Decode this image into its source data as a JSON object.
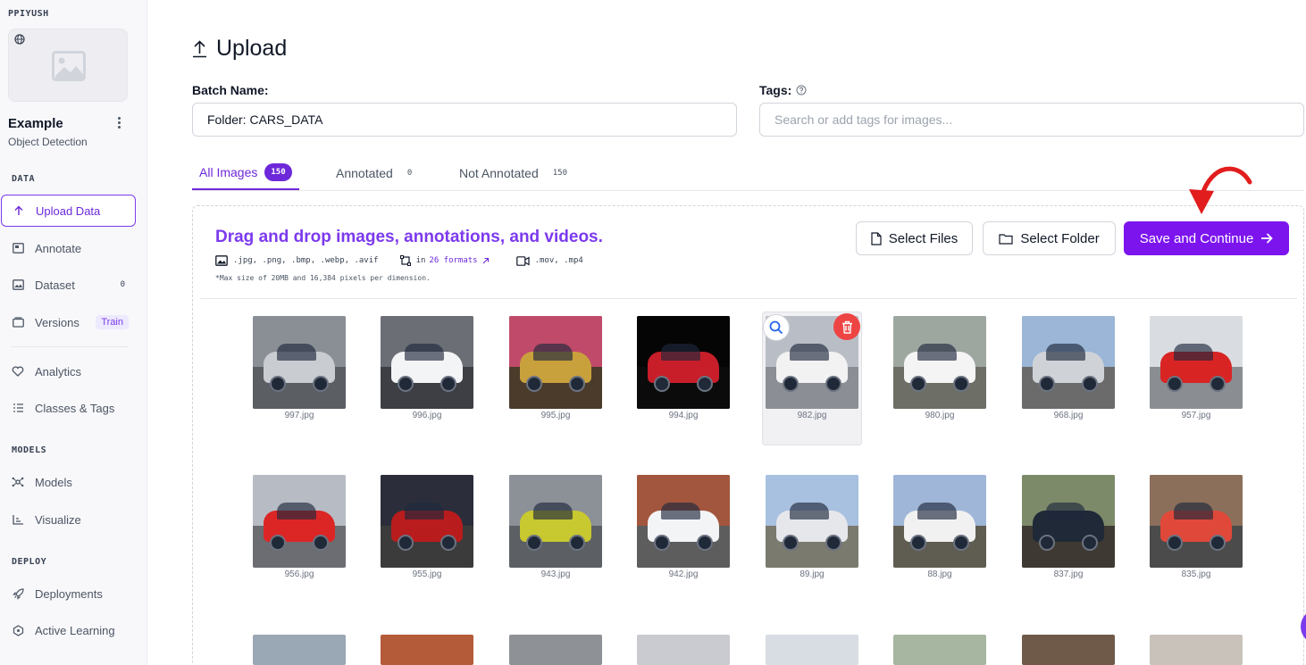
{
  "sidebar": {
    "workspace": "PPIYUSH",
    "project_name": "Example",
    "project_type": "Object Detection",
    "sections": {
      "data": "DATA",
      "models": "MODELS",
      "deploy": "DEPLOY"
    },
    "items": {
      "upload": {
        "label": "Upload Data",
        "icon": "arrow-up-icon"
      },
      "annotate": {
        "label": "Annotate",
        "icon": "annotate-icon"
      },
      "dataset": {
        "label": "Dataset",
        "icon": "image-icon",
        "badge": "0"
      },
      "versions": {
        "label": "Versions",
        "icon": "versions-icon",
        "badge": "Train"
      },
      "analytics": {
        "label": "Analytics",
        "icon": "heart-pulse-icon"
      },
      "classes": {
        "label": "Classes & Tags",
        "icon": "list-icon"
      },
      "models": {
        "label": "Models",
        "icon": "network-icon"
      },
      "visualize": {
        "label": "Visualize",
        "icon": "chart-icon"
      },
      "deployments": {
        "label": "Deployments",
        "icon": "rocket-icon"
      },
      "active_learning": {
        "label": "Active Learning",
        "icon": "loop-icon"
      }
    }
  },
  "header": {
    "title": "Upload"
  },
  "form": {
    "batch_label": "Batch Name:",
    "batch_value": "Folder: CARS_DATA",
    "tags_label": "Tags:",
    "tags_placeholder": "Search or add tags for images..."
  },
  "tabs": {
    "all": {
      "label": "All Images",
      "count": "150"
    },
    "annotated": {
      "label": "Annotated",
      "count": "0"
    },
    "not_annotated": {
      "label": "Not Annotated",
      "count": "150"
    }
  },
  "dropzone": {
    "title": "Drag and drop images, annotations, and videos.",
    "image_formats": ".jpg, .png, .bmp, .webp, .avif",
    "annotation_prefix": "in",
    "annotation_link": "26 formats",
    "video_formats": ".mov, .mp4",
    "note": "*Max size of 20MB and 16,384 pixels per dimension."
  },
  "buttons": {
    "select_files": "Select Files",
    "select_folder": "Select Folder",
    "save_continue": "Save and Continue"
  },
  "images": [
    {
      "name": "997.jpg",
      "sky": "#8a8f96",
      "ground": "#5b5e63",
      "car": "#c9ccd1"
    },
    {
      "name": "996.jpg",
      "sky": "#6b6e74",
      "ground": "#3d3f44",
      "car": "#f3f4f6"
    },
    {
      "name": "995.jpg",
      "sky": "#c04a6a",
      "ground": "#4b3b2a",
      "car": "#c9a13c"
    },
    {
      "name": "994.jpg",
      "sky": "#050505",
      "ground": "#0b0b0b",
      "car": "#c81e2a"
    },
    {
      "name": "982.jpg",
      "sky": "#b9bec6",
      "ground": "#8b8f95",
      "car": "#f2f2f2"
    },
    {
      "name": "980.jpg",
      "sky": "#9ea6a0",
      "ground": "#6d6f66",
      "car": "#f4f4f4"
    },
    {
      "name": "968.jpg",
      "sky": "#9bb6d6",
      "ground": "#6b6b6b",
      "car": "#cfd3d8"
    },
    {
      "name": "957.jpg",
      "sky": "#d9dde2",
      "ground": "#8a8d92",
      "car": "#d92424"
    },
    {
      "name": "956.jpg",
      "sky": "#b7bcc4",
      "ground": "#6b6d72",
      "car": "#dc2626"
    },
    {
      "name": "955.jpg",
      "sky": "#2b2e3a",
      "ground": "#3b3b3b",
      "car": "#b91c1c"
    },
    {
      "name": "943.jpg",
      "sky": "#8c9097",
      "ground": "#5c5f64",
      "car": "#c8c830"
    },
    {
      "name": "942.jpg",
      "sky": "#a2563d",
      "ground": "#5d5d5d",
      "car": "#f3f4f6"
    },
    {
      "name": "89.jpg",
      "sky": "#a9c1e0",
      "ground": "#7b7a6f",
      "car": "#e5e7eb"
    },
    {
      "name": "88.jpg",
      "sky": "#9fb6d8",
      "ground": "#5f5d52",
      "car": "#f1f1f1"
    },
    {
      "name": "837.jpg",
      "sky": "#7d8a6a",
      "ground": "#3e3a33",
      "car": "#1f2937"
    },
    {
      "name": "835.jpg",
      "sky": "#8b6f5b",
      "ground": "#4b4b4b",
      "car": "#e0483a"
    }
  ],
  "colors": {
    "accent": "#7c3aed",
    "primary_button": "#7c14ee",
    "delete": "#ef4444",
    "annotation_arrow": "#e11d1d"
  }
}
